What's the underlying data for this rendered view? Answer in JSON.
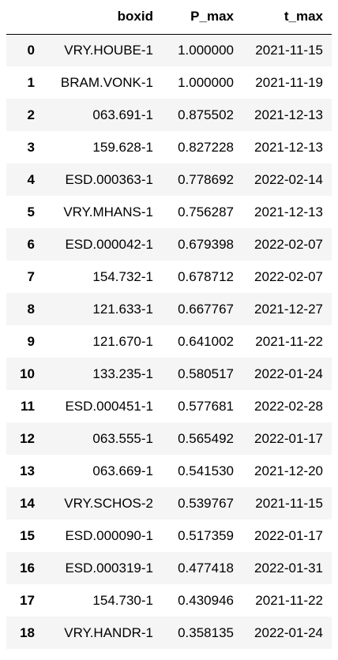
{
  "table": {
    "columns": [
      "",
      "boxid",
      "P_max",
      "t_max"
    ],
    "rows": [
      {
        "index": "0",
        "boxid": "VRY.HOUBE-1",
        "P_max": "1.000000",
        "t_max": "2021-11-15"
      },
      {
        "index": "1",
        "boxid": "BRAM.VONK-1",
        "P_max": "1.000000",
        "t_max": "2021-11-19"
      },
      {
        "index": "2",
        "boxid": "063.691-1",
        "P_max": "0.875502",
        "t_max": "2021-12-13"
      },
      {
        "index": "3",
        "boxid": "159.628-1",
        "P_max": "0.827228",
        "t_max": "2021-12-13"
      },
      {
        "index": "4",
        "boxid": "ESD.000363-1",
        "P_max": "0.778692",
        "t_max": "2022-02-14"
      },
      {
        "index": "5",
        "boxid": "VRY.MHANS-1",
        "P_max": "0.756287",
        "t_max": "2021-12-13"
      },
      {
        "index": "6",
        "boxid": "ESD.000042-1",
        "P_max": "0.679398",
        "t_max": "2022-02-07"
      },
      {
        "index": "7",
        "boxid": "154.732-1",
        "P_max": "0.678712",
        "t_max": "2022-02-07"
      },
      {
        "index": "8",
        "boxid": "121.633-1",
        "P_max": "0.667767",
        "t_max": "2021-12-27"
      },
      {
        "index": "9",
        "boxid": "121.670-1",
        "P_max": "0.641002",
        "t_max": "2021-11-22"
      },
      {
        "index": "10",
        "boxid": "133.235-1",
        "P_max": "0.580517",
        "t_max": "2022-01-24"
      },
      {
        "index": "11",
        "boxid": "ESD.000451-1",
        "P_max": "0.577681",
        "t_max": "2022-02-28"
      },
      {
        "index": "12",
        "boxid": "063.555-1",
        "P_max": "0.565492",
        "t_max": "2022-01-17"
      },
      {
        "index": "13",
        "boxid": "063.669-1",
        "P_max": "0.541530",
        "t_max": "2021-12-20"
      },
      {
        "index": "14",
        "boxid": "VRY.SCHOS-2",
        "P_max": "0.539767",
        "t_max": "2021-11-15"
      },
      {
        "index": "15",
        "boxid": "ESD.000090-1",
        "P_max": "0.517359",
        "t_max": "2022-01-17"
      },
      {
        "index": "16",
        "boxid": "ESD.000319-1",
        "P_max": "0.477418",
        "t_max": "2022-01-31"
      },
      {
        "index": "17",
        "boxid": "154.730-1",
        "P_max": "0.430946",
        "t_max": "2021-11-22"
      },
      {
        "index": "18",
        "boxid": "VRY.HANDR-1",
        "P_max": "0.358135",
        "t_max": "2022-01-24"
      }
    ]
  },
  "colors": {
    "stripe": "#f5f5f5",
    "background": "#ffffff",
    "rule": "#000000"
  }
}
